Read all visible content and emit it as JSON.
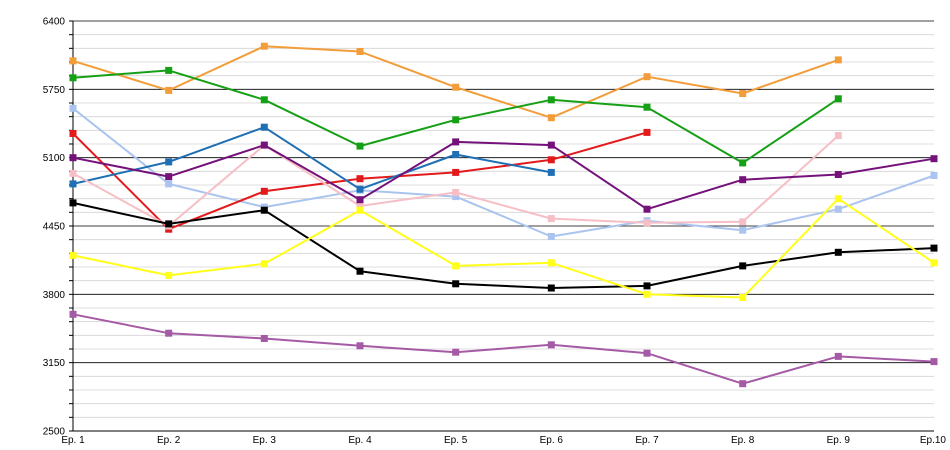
{
  "chart_data": {
    "type": "line",
    "title": "",
    "xlabel": "",
    "ylabel": "",
    "categories": [
      "Ep. 1",
      "Ep. 2",
      "Ep. 3",
      "Ep. 4",
      "Ep. 5",
      "Ep. 6",
      "Ep. 7",
      "Ep. 8",
      "Ep. 9",
      "Ep.10"
    ],
    "ylim": [
      2500,
      6400
    ],
    "yticks": [
      "2500",
      "3150",
      "3800",
      "4450",
      "5100",
      "5750",
      "6400"
    ],
    "grid": true,
    "legend": "none",
    "series": [
      {
        "color": "#f29d3a",
        "values": [
          6020,
          5740,
          6160,
          6110,
          5770,
          5480,
          5870,
          5710,
          6030,
          null
        ]
      },
      {
        "color": "#16a016",
        "values": [
          5860,
          5930,
          5650,
          5210,
          5460,
          5650,
          5580,
          5050,
          5660,
          null
        ]
      },
      {
        "color": "#aac4ef",
        "values": [
          5570,
          4850,
          4630,
          4790,
          4730,
          4350,
          4500,
          4410,
          4610,
          4930
        ]
      },
      {
        "color": "#e31a1c",
        "values": [
          5330,
          4420,
          4780,
          4900,
          4960,
          5080,
          5340,
          null,
          null,
          null
        ]
      },
      {
        "color": "#1f6fb4",
        "values": [
          4850,
          5060,
          5390,
          4800,
          5130,
          4960,
          null,
          null,
          null,
          null
        ]
      },
      {
        "color": "#f5bfc5",
        "values": [
          4950,
          4450,
          5220,
          4640,
          4770,
          4520,
          4480,
          4490,
          5310,
          null
        ]
      },
      {
        "color": "#74117a",
        "values": [
          5100,
          4920,
          5220,
          4700,
          5250,
          5220,
          4610,
          4890,
          4940,
          5090
        ]
      },
      {
        "color": "#000000",
        "values": [
          4670,
          4470,
          4600,
          4020,
          3900,
          3860,
          3880,
          4070,
          4200,
          4240
        ]
      },
      {
        "color": "#ffff1a",
        "values": [
          4170,
          3980,
          4090,
          4600,
          4070,
          4100,
          3800,
          3770,
          4710,
          4100
        ]
      },
      {
        "color": "#a55aa5",
        "values": [
          3610,
          3430,
          3380,
          3310,
          3250,
          3320,
          3240,
          2950,
          3210,
          3160
        ]
      }
    ]
  }
}
